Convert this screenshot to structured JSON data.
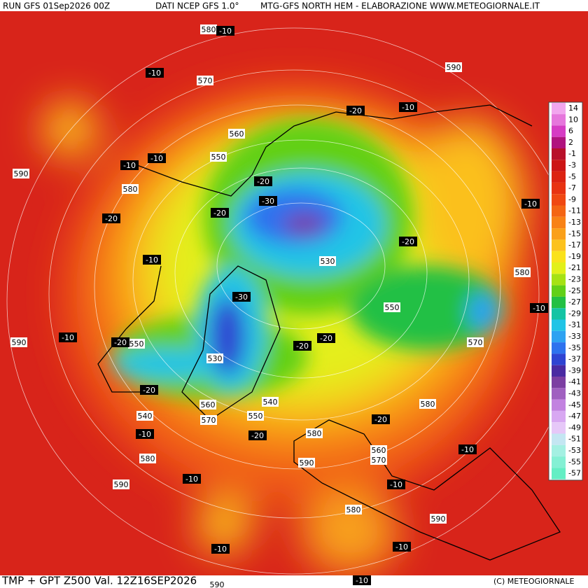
{
  "header": {
    "items": [
      "RUN GFS 01Sep2026 00Z",
      "DATI NCEP GFS 1.0°",
      "MTG-GFS NORTH HEM - ELABORAZIONE WWW.METEOGIORNALE.IT"
    ]
  },
  "footer": {
    "title": "TMP + GPT Z500 Val. 12Z16SEP2026",
    "copyright": "(C) METEOGIORNALE"
  },
  "legend": {
    "items": [
      {
        "label": 14,
        "color": "#f2a6ee"
      },
      {
        "label": 10,
        "color": "#e677dc"
      },
      {
        "label": 6,
        "color": "#d63cc4"
      },
      {
        "label": 2,
        "color": "#b0137e"
      },
      {
        "label": -1,
        "color": "#b8102a"
      },
      {
        "label": -3,
        "color": "#cc1414"
      },
      {
        "label": -5,
        "color": "#dc2312"
      },
      {
        "label": -7,
        "color": "#e83312"
      },
      {
        "label": -9,
        "color": "#f04812"
      },
      {
        "label": -11,
        "color": "#f46514"
      },
      {
        "label": -13,
        "color": "#f88216"
      },
      {
        "label": -15,
        "color": "#faa01a"
      },
      {
        "label": -17,
        "color": "#fcc21e"
      },
      {
        "label": -19,
        "color": "#fae21c"
      },
      {
        "label": -21,
        "color": "#e2f01a"
      },
      {
        "label": -23,
        "color": "#a6e214"
      },
      {
        "label": -25,
        "color": "#62d018"
      },
      {
        "label": -27,
        "color": "#22c044"
      },
      {
        "label": -29,
        "color": "#14c4a4"
      },
      {
        "label": -31,
        "color": "#20c4e6"
      },
      {
        "label": -33,
        "color": "#2ea2f2"
      },
      {
        "label": -35,
        "color": "#2e72ee"
      },
      {
        "label": -37,
        "color": "#2f44d2"
      },
      {
        "label": -39,
        "color": "#4a2aa2"
      },
      {
        "label": -41,
        "color": "#7c3ea2"
      },
      {
        "label": -43,
        "color": "#a060c0"
      },
      {
        "label": -45,
        "color": "#c282e0"
      },
      {
        "label": -47,
        "color": "#d8a8f2"
      },
      {
        "label": -49,
        "color": "#e6c8f8"
      },
      {
        "label": -51,
        "color": "#c4e6f2"
      },
      {
        "label": -53,
        "color": "#a4f0e2"
      },
      {
        "label": -55,
        "color": "#84f0d4"
      },
      {
        "label": -57,
        "color": "#64eec4"
      }
    ]
  },
  "map": {
    "height_labels": [
      580,
      570,
      590,
      560,
      550,
      590,
      580,
      530,
      550,
      580,
      590,
      550,
      530,
      570,
      560,
      540,
      570,
      540,
      550,
      580,
      580,
      560,
      570,
      590,
      580,
      590,
      580,
      590,
      590
    ],
    "temp_labels": [
      -10,
      -10,
      -20,
      -10,
      -10,
      -10,
      -20,
      -30,
      -20,
      -20,
      -20,
      -10,
      -10,
      -30,
      -10,
      -20,
      -20,
      -10,
      -20,
      -20,
      -10,
      -20,
      -20,
      -10,
      -10,
      -10,
      -10,
      -10,
      -10
    ]
  }
}
